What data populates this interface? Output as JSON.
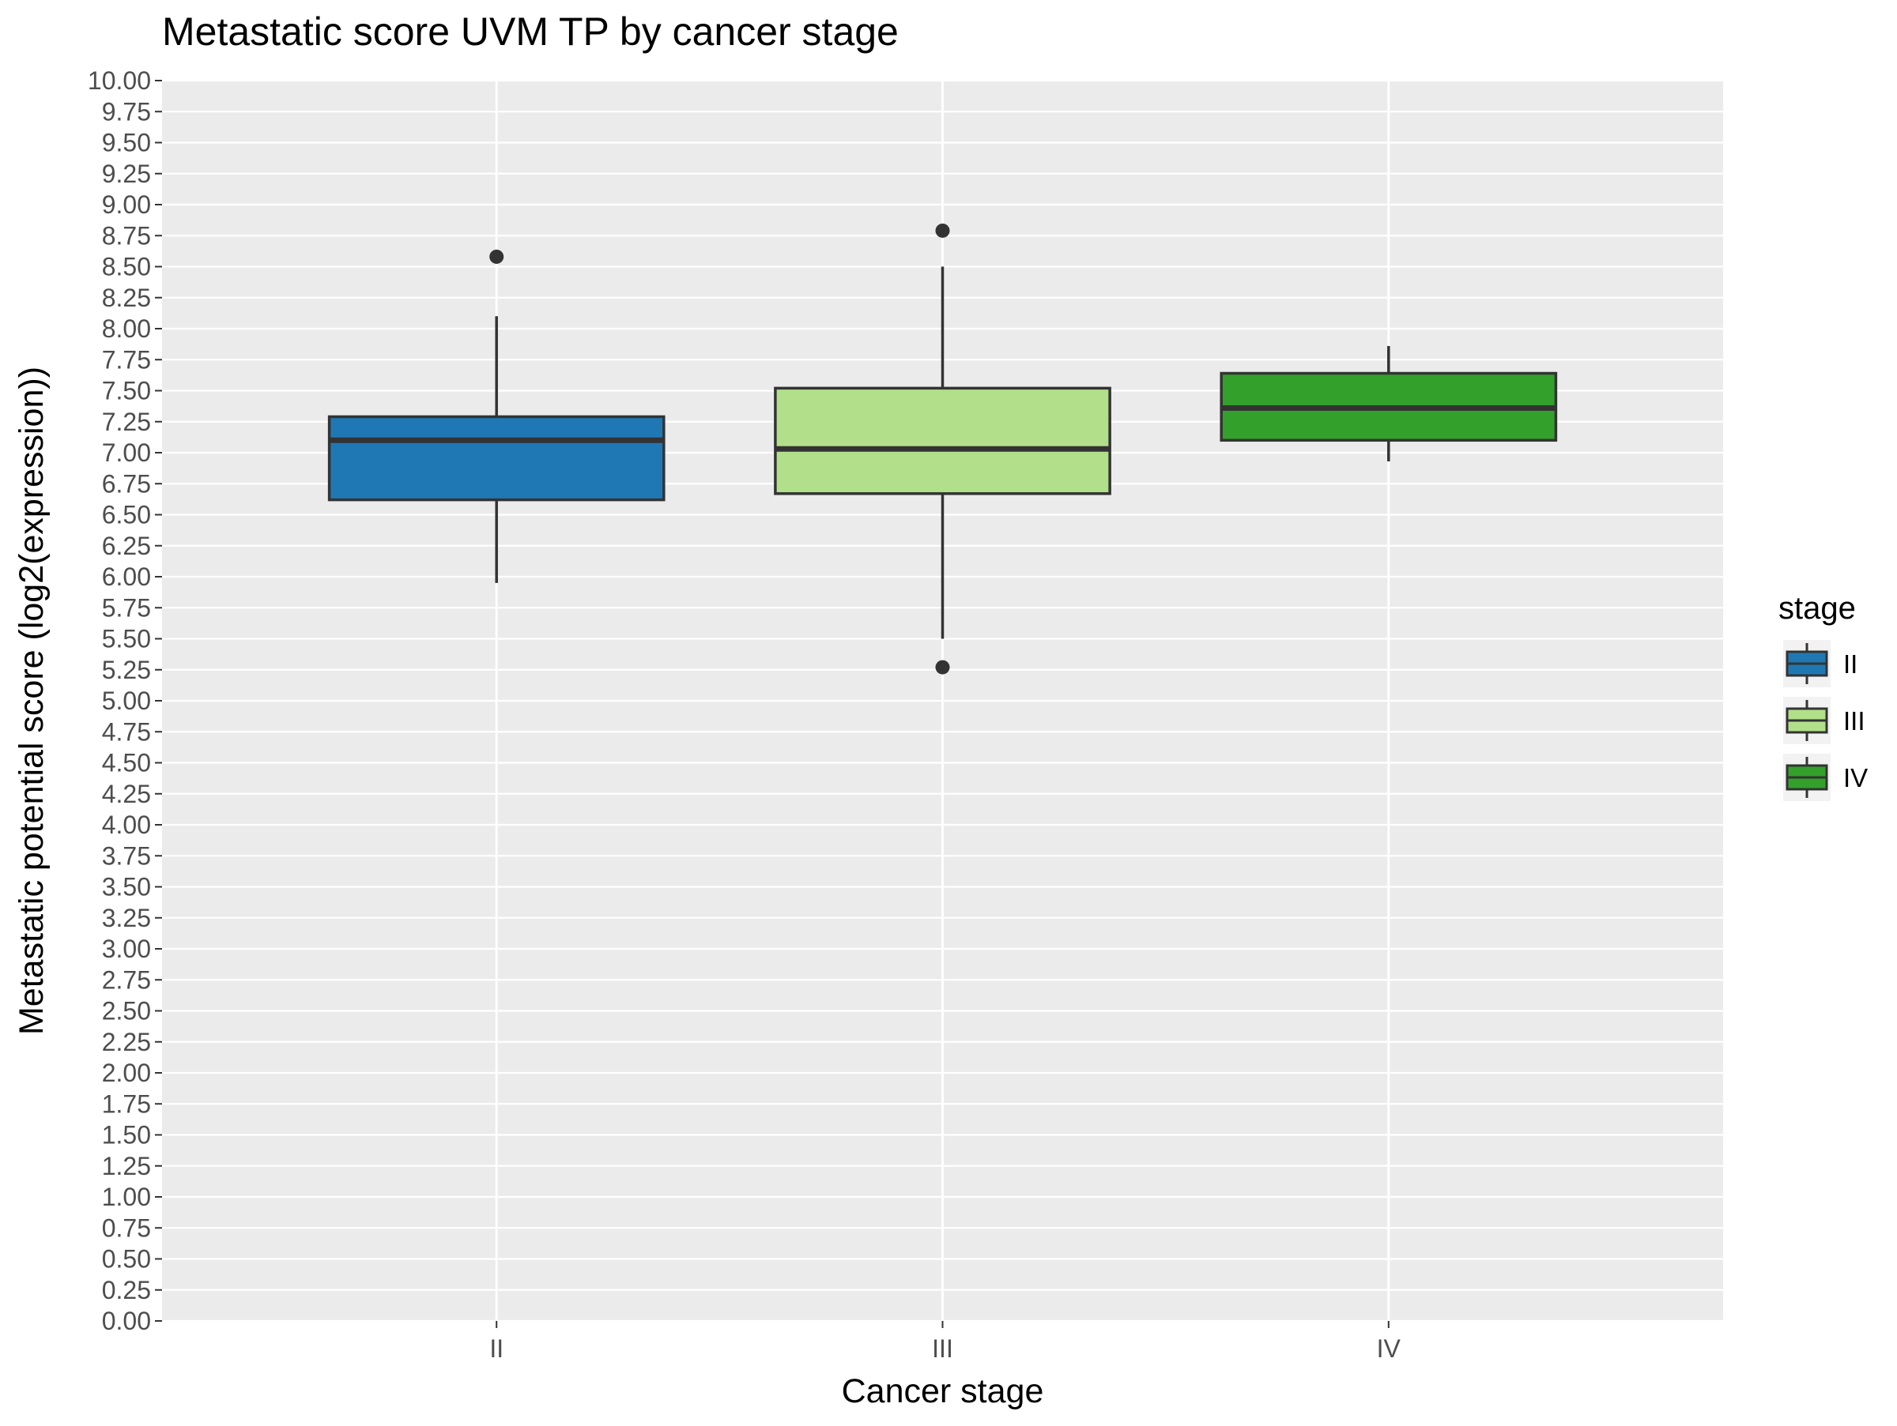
{
  "chart_data": {
    "type": "boxplot",
    "title": "Metastatic score UVM TP by cancer stage",
    "xlabel": "Cancer stage",
    "ylabel": "Metastatic potential score (log2(expression))",
    "ylim": [
      0,
      10
    ],
    "ytick_step": 0.25,
    "yticks": [
      "0.00",
      "0.25",
      "0.50",
      "0.75",
      "1.00",
      "1.25",
      "1.50",
      "1.75",
      "2.00",
      "2.25",
      "2.50",
      "2.75",
      "3.00",
      "3.25",
      "3.50",
      "3.75",
      "4.00",
      "4.25",
      "4.50",
      "4.75",
      "5.00",
      "5.25",
      "5.50",
      "5.75",
      "6.00",
      "6.25",
      "6.50",
      "6.75",
      "7.00",
      "7.25",
      "7.50",
      "7.75",
      "8.00",
      "8.25",
      "8.50",
      "8.75",
      "9.00",
      "9.25",
      "9.50",
      "9.75",
      "10.00"
    ],
    "categories": [
      "II",
      "III",
      "IV"
    ],
    "grid": true,
    "legend": {
      "title": "stage",
      "position": "right"
    },
    "series": [
      {
        "name": "II",
        "color": "#1f78b4",
        "whisker_low": 5.95,
        "q1": 6.62,
        "median": 7.1,
        "q3": 7.29,
        "whisker_high": 8.1,
        "outliers": [
          8.58
        ]
      },
      {
        "name": "III",
        "color": "#b2df8a",
        "whisker_low": 5.5,
        "q1": 6.67,
        "median": 7.03,
        "q3": 7.52,
        "whisker_high": 8.5,
        "outliers": [
          8.79,
          5.27
        ]
      },
      {
        "name": "IV",
        "color": "#33a02c",
        "whisker_low": 6.93,
        "q1": 7.1,
        "median": 7.36,
        "q3": 7.64,
        "whisker_high": 7.86,
        "outliers": []
      }
    ]
  }
}
